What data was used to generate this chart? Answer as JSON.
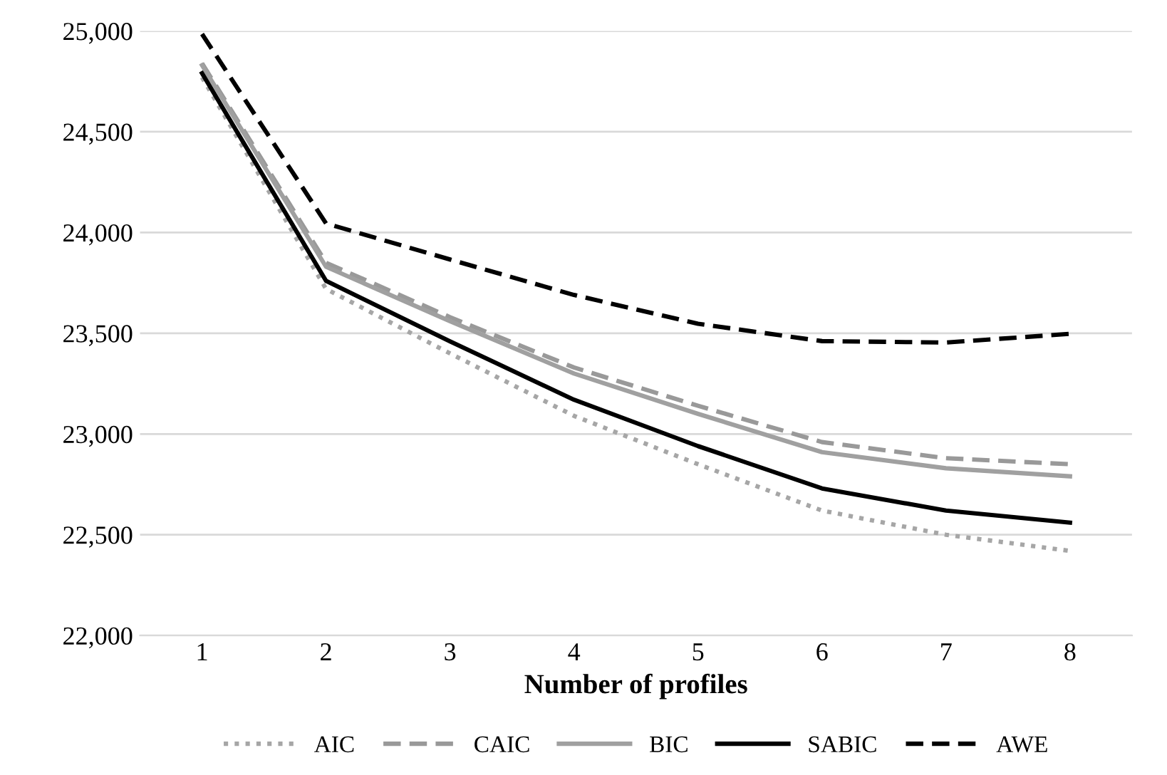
{
  "chart_data": {
    "type": "line",
    "xlabel": "Number of profiles",
    "categories": [
      "1",
      "2",
      "3",
      "4",
      "5",
      "6",
      "7",
      "8"
    ],
    "series": [
      {
        "name": "AIC",
        "color": "#a6a6a6",
        "line_style": "dotted",
        "values": [
          24770,
          23720,
          23400,
          23090,
          22850,
          22620,
          22500,
          22420
        ]
      },
      {
        "name": "CAIC",
        "color": "#999999",
        "line_style": "dashed",
        "values": [
          24840,
          23850,
          23580,
          23330,
          23140,
          22960,
          22880,
          22850
        ]
      },
      {
        "name": "BIC",
        "color": "#a0a0a0",
        "line_style": "solid",
        "values": [
          24830,
          23830,
          23560,
          23300,
          23100,
          22910,
          22830,
          22790
        ]
      },
      {
        "name": "SABIC",
        "color": "#000000",
        "line_style": "solid",
        "values": [
          24790,
          23760,
          23460,
          23170,
          22940,
          22730,
          22620,
          22560
        ]
      },
      {
        "name": "AWE",
        "color": "#000000",
        "line_style": "dashed",
        "values": [
          24985,
          24045,
          23866,
          23690,
          23547,
          23461,
          23454,
          23497
        ]
      }
    ],
    "ylim": [
      22000,
      25000
    ],
    "yticks": [
      {
        "value": 22000,
        "label": "22,000"
      },
      {
        "value": 22500,
        "label": "22,500"
      },
      {
        "value": 23000,
        "label": "23,000"
      },
      {
        "value": 23500,
        "label": "23,500"
      },
      {
        "value": 24000,
        "label": "24,000"
      },
      {
        "value": 24500,
        "label": "24,500"
      },
      {
        "value": 25000,
        "label": "25,000"
      }
    ],
    "grid": "y",
    "legend": "bottom",
    "marker": "none"
  }
}
